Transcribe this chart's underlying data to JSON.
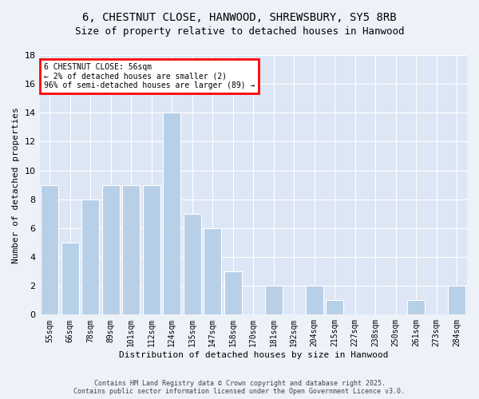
{
  "title": "6, CHESTNUT CLOSE, HANWOOD, SHREWSBURY, SY5 8RB",
  "subtitle": "Size of property relative to detached houses in Hanwood",
  "xlabel": "Distribution of detached houses by size in Hanwood",
  "ylabel": "Number of detached properties",
  "categories": [
    "55sqm",
    "66sqm",
    "78sqm",
    "89sqm",
    "101sqm",
    "112sqm",
    "124sqm",
    "135sqm",
    "147sqm",
    "158sqm",
    "170sqm",
    "181sqm",
    "192sqm",
    "204sqm",
    "215sqm",
    "227sqm",
    "238sqm",
    "250sqm",
    "261sqm",
    "273sqm",
    "284sqm"
  ],
  "values": [
    9,
    5,
    8,
    9,
    9,
    9,
    14,
    7,
    6,
    3,
    0,
    2,
    0,
    2,
    1,
    0,
    0,
    0,
    1,
    0,
    2
  ],
  "bar_color": "#b8cfe8",
  "annotation_line1": "6 CHESTNUT CLOSE: 56sqm",
  "annotation_line2": "← 2% of detached houses are smaller (2)",
  "annotation_line3": "96% of semi-detached houses are larger (89) →",
  "ylim": [
    0,
    18
  ],
  "yticks": [
    0,
    2,
    4,
    6,
    8,
    10,
    12,
    14,
    16,
    18
  ],
  "footer_text": "Contains HM Land Registry data © Crown copyright and database right 2025.\nContains public sector information licensed under the Open Government Licence v3.0.",
  "bg_color": "#edf2f9",
  "plot_bg_color": "#dce6f5",
  "grid_color": "#ffffff",
  "title_fontsize": 10,
  "subtitle_fontsize": 9,
  "tick_fontsize": 7,
  "ylabel_fontsize": 8,
  "xlabel_fontsize": 8,
  "annotation_fontsize": 7
}
